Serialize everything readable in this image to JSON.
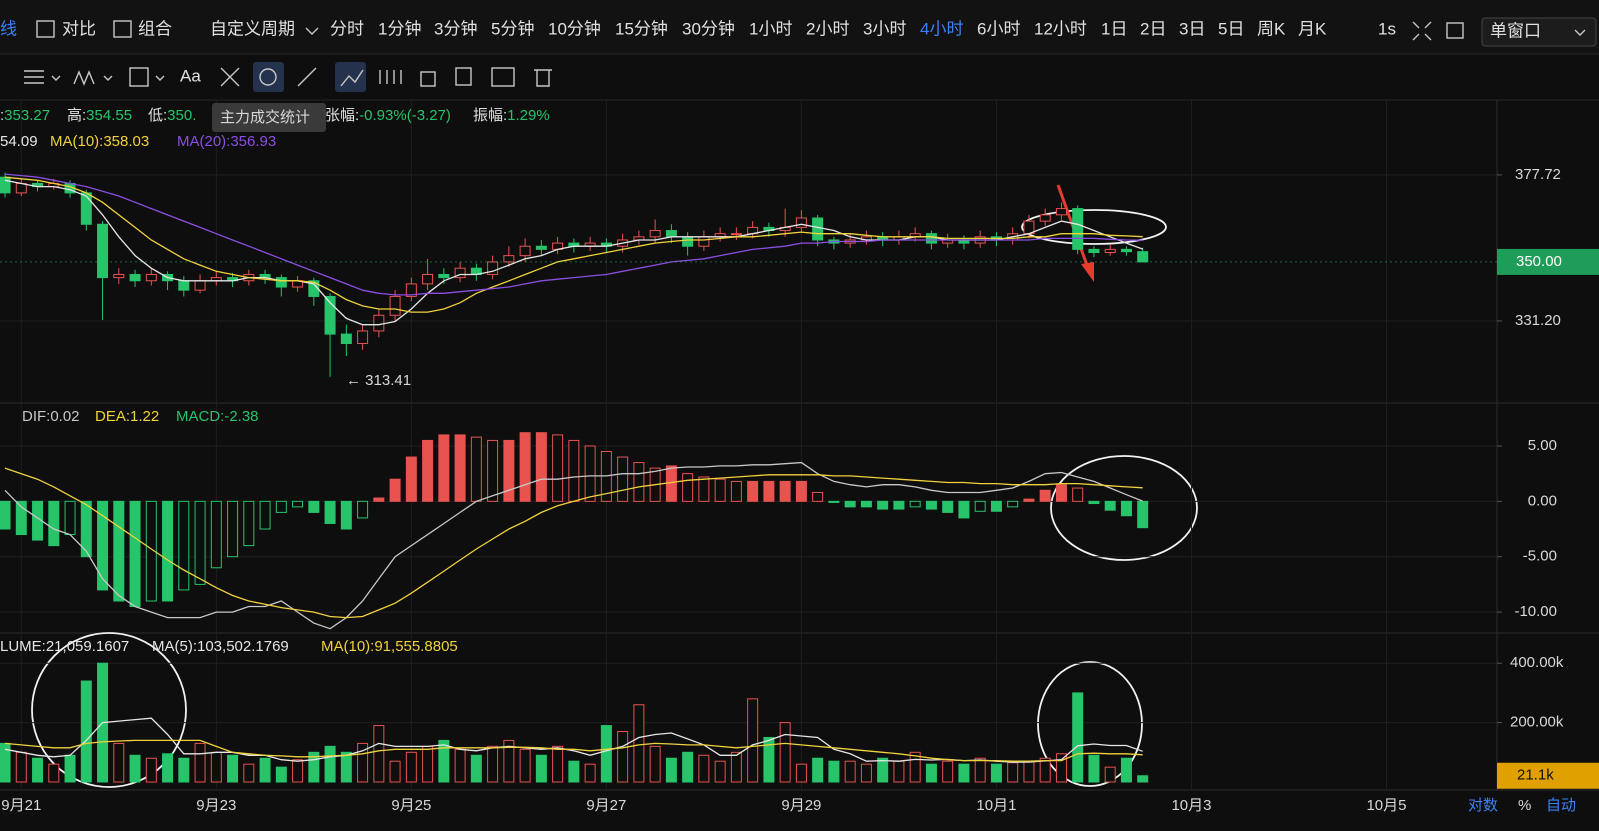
{
  "toolbar": {
    "draw_label": "线",
    "items": [
      "对比",
      "组合"
    ],
    "period_menu": "自定义周期",
    "periods": [
      {
        "label": "分时"
      },
      {
        "label": "1分钟"
      },
      {
        "label": "3分钟"
      },
      {
        "label": "5分钟"
      },
      {
        "label": "10分钟"
      },
      {
        "label": "15分钟"
      },
      {
        "label": "30分钟"
      },
      {
        "label": "1小时"
      },
      {
        "label": "2小时"
      },
      {
        "label": "3小时"
      },
      {
        "label": "4小时",
        "active": true
      },
      {
        "label": "6小时"
      },
      {
        "label": "12小时"
      },
      {
        "label": "1日"
      },
      {
        "label": "2日"
      },
      {
        "label": "3日"
      },
      {
        "label": "5日"
      },
      {
        "label": "周K"
      },
      {
        "label": "月K"
      }
    ],
    "interval": "1s",
    "window_mode": "单窗口"
  },
  "toolbar2": {
    "font_button": "Aa"
  },
  "tooltip": "主力成交统计",
  "info": [
    {
      "label": ":",
      "value": "353.27"
    },
    {
      "label": "高:",
      "value": "354.55"
    },
    {
      "label": "低:",
      "value": "350."
    },
    {
      "label": "张幅:",
      "value": "-0.93%(-3.27)"
    },
    {
      "label": "振幅:",
      "value": "1.29%"
    }
  ],
  "footer": [
    "对数",
    "%",
    "自动"
  ],
  "chart_data": [
    {
      "type": "candlestick",
      "up_color": "#e8534f",
      "down_color": "#27c46a",
      "open": [
        377,
        372,
        375,
        374,
        375,
        372,
        362,
        345,
        346,
        344,
        346,
        344,
        341,
        344,
        345,
        344,
        346,
        345,
        342,
        344,
        339,
        327,
        324,
        328,
        333,
        339,
        343,
        346,
        345,
        348,
        346,
        350,
        352,
        355,
        354,
        356,
        355,
        356,
        355,
        357,
        358,
        360,
        358,
        355,
        358,
        359,
        359,
        361,
        360,
        361,
        364,
        357,
        356,
        357,
        358,
        357,
        358,
        359,
        356,
        357,
        356,
        358,
        357,
        359,
        363,
        365,
        367,
        354,
        353,
        354,
        353.27
      ],
      "high": [
        378.5,
        376.5,
        376,
        376.5,
        376,
        373,
        363,
        348,
        347.5,
        348,
        347,
        345.5,
        346,
        347,
        346.5,
        347.5,
        347.5,
        346,
        345.5,
        345,
        340,
        330,
        330,
        335,
        341,
        345,
        351,
        348,
        350,
        349.5,
        352,
        355,
        357.5,
        357,
        358,
        357.5,
        358,
        357.5,
        359,
        360,
        363.5,
        362,
        359.5,
        360,
        361,
        361,
        363,
        362.5,
        367,
        366.5,
        365,
        358,
        359,
        360,
        359.5,
        360,
        361,
        360,
        359,
        358.5,
        360,
        359.5,
        361,
        365,
        367,
        369,
        368,
        355,
        355.5,
        355,
        354.55
      ],
      "low": [
        370.5,
        371,
        372.5,
        373,
        370.5,
        360,
        331.5,
        343,
        342,
        342.5,
        341,
        339,
        340,
        342.5,
        342,
        342.5,
        343,
        339,
        340.5,
        336,
        313.41,
        320,
        322,
        326,
        331,
        337.5,
        341,
        343,
        343.5,
        344,
        344.5,
        348.5,
        350,
        352,
        352.5,
        353,
        353.5,
        353,
        353,
        355.5,
        356,
        356,
        352,
        353.5,
        356.5,
        357,
        357.5,
        358,
        358,
        359.5,
        355,
        354,
        354.5,
        355.5,
        355,
        355.5,
        356.5,
        354,
        354.5,
        354,
        354.5,
        355,
        355.5,
        357.5,
        361.5,
        363.5,
        352.5,
        351.5,
        352,
        352,
        350
      ],
      "close": [
        372,
        375,
        374,
        375,
        372,
        362,
        345,
        346,
        344,
        346,
        344,
        341,
        344,
        345,
        344,
        346,
        345,
        342,
        344,
        339,
        327,
        324,
        328,
        333,
        339,
        343,
        346,
        345,
        348,
        346,
        350,
        352,
        355,
        354,
        356,
        355,
        356,
        355,
        357,
        358,
        360,
        358,
        355,
        358,
        359,
        359,
        361,
        360,
        361,
        364,
        357,
        356,
        357,
        358,
        357,
        358,
        359,
        356,
        357,
        356,
        358,
        357,
        359,
        363,
        365,
        367,
        354,
        353,
        354,
        353.27,
        350
      ],
      "series": [
        {
          "label": "54.09",
          "color": "#e6e6e6",
          "values": [
            376,
            375,
            374,
            374,
            373,
            371,
            365,
            358,
            352,
            348,
            345,
            344,
            344,
            344,
            344,
            345,
            345,
            344,
            344,
            343,
            337,
            332,
            330,
            330,
            331,
            335,
            340,
            344,
            346,
            346,
            347,
            349,
            351,
            352,
            354,
            355,
            355,
            355,
            356,
            357,
            357,
            358,
            358,
            358,
            358,
            358,
            359,
            360,
            361,
            362,
            361,
            360,
            358,
            357,
            357,
            357,
            358,
            358,
            357,
            357,
            357,
            357,
            358,
            359,
            361,
            363,
            362,
            360,
            358,
            356,
            354.09
          ]
        },
        {
          "label": "MA(10):358.03",
          "color": "#f0d23c",
          "values": [
            377,
            376.5,
            376,
            375,
            374,
            372,
            369,
            365,
            361,
            357,
            354,
            351,
            349,
            347,
            346,
            345,
            344.5,
            344,
            344,
            343.5,
            341,
            338,
            336,
            335,
            335,
            334,
            334,
            335,
            337,
            340,
            342,
            344,
            346,
            348,
            350,
            351,
            352,
            353,
            354,
            355,
            356,
            356.5,
            357,
            357,
            357.5,
            358,
            358,
            358.5,
            359,
            359.5,
            359,
            359,
            359,
            358.5,
            358,
            358,
            358,
            358,
            357.5,
            357.5,
            357.5,
            357.5,
            357.5,
            358,
            358,
            359,
            359,
            359,
            358.5,
            358.3,
            358.03
          ]
        },
        {
          "label": "MA(20):356.93",
          "color": "#8a4fe0",
          "values": [
            378,
            377.5,
            377,
            376,
            375,
            374,
            372.5,
            371,
            369,
            367,
            365,
            363,
            361,
            359,
            357,
            355,
            353,
            351,
            349,
            347,
            345,
            343,
            341,
            340,
            339.5,
            339.5,
            340,
            340,
            340.5,
            341,
            341.5,
            342,
            343,
            344,
            344.5,
            345,
            345.5,
            346,
            347,
            348,
            349,
            350,
            350.5,
            351,
            352,
            353,
            354,
            354.5,
            355,
            356,
            356,
            356.5,
            356.5,
            356.5,
            357,
            357,
            357,
            357,
            357,
            357,
            357,
            357,
            357,
            357,
            357.5,
            357.5,
            357.5,
            357.5,
            357.2,
            357,
            356.93
          ]
        }
      ],
      "annotation": "← 313.41",
      "ylim": [
        306,
        401.6
      ],
      "yticks": [
        {
          "value": 331.2,
          "label": "331.20"
        },
        {
          "value": 377.72,
          "label": "377.72"
        }
      ],
      "last_price": {
        "value": 350,
        "label": "350.00"
      },
      "xlim": [
        -0.31,
        91.8
      ]
    },
    {
      "type": "macd",
      "histogram": {
        "label": "MACD:-2.38",
        "values": [
          -2.5,
          -3,
          -3.5,
          -4,
          -3,
          -5,
          -8,
          -9,
          -9.5,
          -9,
          -9,
          -8,
          -7.5,
          -6,
          -5,
          -4,
          -2.5,
          -1,
          -0.5,
          -1,
          -2,
          -2.5,
          -1.5,
          0.3,
          2,
          4,
          5.5,
          6,
          6,
          5.8,
          5.5,
          5.5,
          6.2,
          6.2,
          6,
          5.5,
          5,
          4.5,
          4,
          3.5,
          3,
          3.2,
          2.5,
          2.2,
          2,
          1.8,
          1.8,
          1.8,
          1.8,
          1.8,
          0.8,
          -0.1,
          -0.5,
          -0.5,
          -0.7,
          -0.7,
          -0.5,
          -0.7,
          -1,
          -1.5,
          -0.9,
          -0.9,
          -0.5,
          0.2,
          1,
          1.5,
          1.2,
          -0.2,
          -0.8,
          -1.3,
          -2.38
        ]
      },
      "series": [
        {
          "label": "DIF:0.02",
          "color": "#c8c8c8",
          "values": [
            1,
            -0.5,
            -1.5,
            -2.5,
            -3,
            -4.5,
            -7,
            -8.5,
            -9.5,
            -10,
            -10.5,
            -10.5,
            -10.5,
            -10,
            -10,
            -9.5,
            -9.5,
            -9,
            -10,
            -11,
            -11.5,
            -10.5,
            -9,
            -7,
            -5,
            -4,
            -3,
            -2,
            -1,
            0,
            0.5,
            1,
            1.5,
            2,
            2,
            2.2,
            2.3,
            2.3,
            2.5,
            2.5,
            2.7,
            3,
            3.1,
            3.1,
            3.2,
            3.2,
            3.3,
            3.3,
            3.4,
            3.5,
            2.5,
            1.8,
            1.5,
            1.3,
            1.5,
            1.5,
            1.3,
            1,
            0.8,
            0.8,
            0.8,
            1,
            1.2,
            1.8,
            2.5,
            2.6,
            2.2,
            1.8,
            1.2,
            0.6,
            0.02
          ]
        },
        {
          "label": "DEA:1.22",
          "color": "#f0d23c",
          "values": [
            3,
            2.5,
            2,
            1.3,
            0.5,
            -0.3,
            -1.3,
            -2.3,
            -3.3,
            -4.3,
            -5.3,
            -6.2,
            -7,
            -7.8,
            -8.5,
            -9,
            -9.3,
            -9.6,
            -9.8,
            -10,
            -10.4,
            -10.5,
            -10.4,
            -9.8,
            -9.2,
            -8.3,
            -7.3,
            -6.3,
            -5.3,
            -4.3,
            -3.4,
            -2.5,
            -1.8,
            -1,
            -0.4,
            0,
            0.4,
            0.7,
            1,
            1.3,
            1.5,
            1.7,
            1.9,
            2,
            2.1,
            2.2,
            2.3,
            2.4,
            2.4,
            2.4,
            2.4,
            2.3,
            2.3,
            2.2,
            2.1,
            2,
            1.9,
            1.8,
            1.7,
            1.7,
            1.6,
            1.6,
            1.5,
            1.5,
            1.5,
            1.6,
            1.6,
            1.5,
            1.4,
            1.3,
            1.22
          ]
        }
      ],
      "ylim": [
        -11.8,
        8.7
      ],
      "yticks": [
        {
          "value": 5,
          "label": "5.00"
        },
        {
          "value": 0,
          "label": "0.00"
        },
        {
          "value": -5,
          "label": "-5.00"
        },
        {
          "value": -10,
          "label": "-10.00"
        }
      ],
      "xlim": [
        -0.31,
        91.8
      ]
    },
    {
      "type": "volume",
      "label": "LUME:21,059.1607",
      "values": [
        130000,
        100000,
        80000,
        60000,
        90000,
        340000,
        400000,
        130000,
        90000,
        80000,
        95000,
        80000,
        130000,
        100000,
        90000,
        60000,
        80000,
        50000,
        75000,
        100000,
        120000,
        100000,
        130000,
        190000,
        70000,
        100000,
        120000,
        140000,
        110000,
        90000,
        120000,
        140000,
        110000,
        90000,
        120000,
        70000,
        60000,
        190000,
        170000,
        260000,
        120000,
        80000,
        100000,
        90000,
        70000,
        100000,
        280000,
        150000,
        200000,
        60000,
        80000,
        70000,
        70000,
        60000,
        80000,
        70000,
        100000,
        60000,
        70000,
        60000,
        80000,
        60000,
        65000,
        70000,
        80000,
        95000,
        300000,
        90000,
        50000,
        80000,
        21059.1607
      ],
      "series": [
        {
          "label": "MA(5):103,502.1769",
          "color": "#e6e6e6",
          "values": [
            110000,
            100000,
            90000,
            85000,
            90000,
            140000,
            200000,
            205000,
            210000,
            215000,
            160000,
            95000,
            95000,
            100000,
            100000,
            90000,
            90000,
            75000,
            70000,
            75000,
            85000,
            90000,
            105000,
            130000,
            120000,
            120000,
            120000,
            125000,
            110000,
            105000,
            115000,
            120000,
            115000,
            110000,
            115000,
            105000,
            90000,
            105000,
            120000,
            150000,
            160000,
            165000,
            145000,
            125000,
            90000,
            90000,
            125000,
            140000,
            160000,
            155000,
            150000,
            110000,
            95000,
            70000,
            72000,
            70000,
            76000,
            74000,
            76000,
            72000,
            74000,
            70000,
            67000,
            67000,
            71000,
            75000,
            122000,
            128000,
            123000,
            123000,
            103502.1769
          ]
        },
        {
          "label": "MA(10):91,555.8805",
          "color": "#f0d23c",
          "values": [
            130000,
            125000,
            120000,
            115000,
            115000,
            130000,
            135000,
            138000,
            140000,
            140000,
            140000,
            140000,
            140000,
            120000,
            100000,
            95000,
            90000,
            88000,
            85000,
            85000,
            88000,
            90000,
            95000,
            105000,
            110000,
            110000,
            110000,
            115000,
            115000,
            115000,
            115000,
            117000,
            117000,
            115000,
            110000,
            110000,
            105000,
            110000,
            115000,
            125000,
            130000,
            128000,
            125000,
            125000,
            120000,
            115000,
            120000,
            125000,
            130000,
            125000,
            120000,
            115000,
            110000,
            105000,
            100000,
            95000,
            88000,
            80000,
            75000,
            72000,
            72000,
            72000,
            70000,
            70000,
            72000,
            72000,
            95000,
            97000,
            95000,
            95000,
            91555.8805
          ]
        }
      ],
      "ylim": [
        0,
        495000
      ],
      "yticks": [
        {
          "value": 200000,
          "label": "200.00k"
        },
        {
          "value": 400000,
          "label": "400.00k"
        }
      ],
      "last_volume": {
        "value": 21059.1607,
        "label": "21.1k"
      },
      "xlim": [
        -0.31,
        91.8
      ],
      "xticks": [
        {
          "value": 1,
          "label": "9月21"
        },
        {
          "value": 13,
          "label": "9月23"
        },
        {
          "value": 25,
          "label": "9月25"
        },
        {
          "value": 37,
          "label": "9月27"
        },
        {
          "value": 49,
          "label": "9月29"
        },
        {
          "value": 61,
          "label": "10月1"
        },
        {
          "value": 73,
          "label": "10月3"
        },
        {
          "value": 85,
          "label": "10月5"
        }
      ]
    }
  ]
}
